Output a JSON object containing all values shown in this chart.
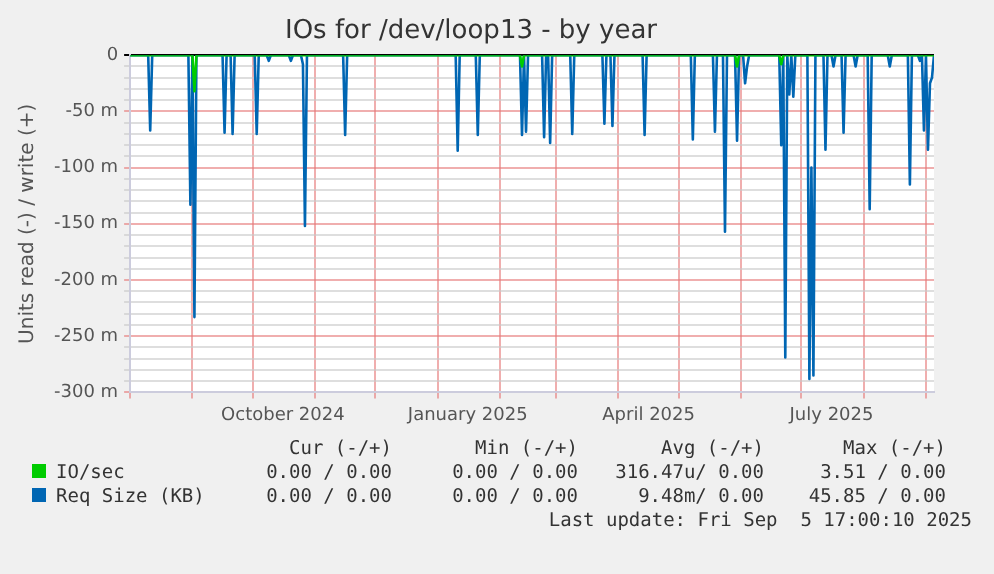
{
  "chart_data": {
    "type": "line",
    "title": "IOs for /dev/loop13 - by year",
    "ylabel": "Units read (-) / write (+)",
    "xlim": [
      "2024-08-01",
      "2025-09-05"
    ],
    "xticks": [
      {
        "value": "2024-08-01",
        "label": null
      },
      {
        "value": "2024-09-01",
        "label": null
      },
      {
        "value": "2024-10-01",
        "label": null
      },
      {
        "value": "2024-10-16",
        "label": "October 2024"
      },
      {
        "value": "2024-11-01",
        "label": null
      },
      {
        "value": "2024-12-01",
        "label": null
      },
      {
        "value": "2025-01-01",
        "label": null
      },
      {
        "value": "2025-01-16",
        "label": "January 2025"
      },
      {
        "value": "2025-02-01",
        "label": null
      },
      {
        "value": "2025-03-01",
        "label": null
      },
      {
        "value": "2025-04-01",
        "label": null
      },
      {
        "value": "2025-04-16",
        "label": "April 2025"
      },
      {
        "value": "2025-05-01",
        "label": null
      },
      {
        "value": "2025-06-01",
        "label": null
      },
      {
        "value": "2025-07-01",
        "label": null
      },
      {
        "value": "2025-07-16",
        "label": "July 2025"
      },
      {
        "value": "2025-08-01",
        "label": null
      },
      {
        "value": "2025-09-01",
        "label": null
      }
    ],
    "ylim": [
      -300,
      0
    ],
    "yticks": [
      {
        "value": -300,
        "label": "-300 m"
      },
      {
        "value": -290,
        "label": null
      },
      {
        "value": -280,
        "label": null
      },
      {
        "value": -270,
        "label": null
      },
      {
        "value": -260,
        "label": null
      },
      {
        "value": -250,
        "label": "-250 m"
      },
      {
        "value": -240,
        "label": null
      },
      {
        "value": -230,
        "label": null
      },
      {
        "value": -220,
        "label": null
      },
      {
        "value": -210,
        "label": null
      },
      {
        "value": -200,
        "label": "-200 m"
      },
      {
        "value": -190,
        "label": null
      },
      {
        "value": -180,
        "label": null
      },
      {
        "value": -170,
        "label": null
      },
      {
        "value": -160,
        "label": null
      },
      {
        "value": -150,
        "label": "-150 m"
      },
      {
        "value": -140,
        "label": null
      },
      {
        "value": -130,
        "label": null
      },
      {
        "value": -120,
        "label": null
      },
      {
        "value": -110,
        "label": null
      },
      {
        "value": -100,
        "label": "-100 m"
      },
      {
        "value": -90,
        "label": null
      },
      {
        "value": -80,
        "label": null
      },
      {
        "value": -70,
        "label": null
      },
      {
        "value": -60,
        "label": null
      },
      {
        "value": -50,
        "label": "-50 m"
      },
      {
        "value": -40,
        "label": null
      },
      {
        "value": -30,
        "label": null
      },
      {
        "value": -20,
        "label": null
      },
      {
        "value": -10,
        "label": null
      },
      0
    ],
    "grid": true,
    "legend": "bottom left",
    "line_style": "solid",
    "marker": "none",
    "series": [
      {
        "name": "IO/sec",
        "color": "#00cc00",
        "x": [
          "2024-08-01",
          "2024-09-01",
          "2024-09-02",
          "2024-09-03",
          "2025-02-11",
          "2025-02-12",
          "2025-02-13",
          "2025-05-29",
          "2025-05-30",
          "2025-05-31",
          "2025-06-20",
          "2025-06-21",
          "2025-06-22",
          "2025-09-05"
        ],
        "values": [
          0,
          0,
          -32,
          0,
          0,
          -10,
          0,
          0,
          -10,
          0,
          0,
          -8,
          0,
          0
        ]
      },
      {
        "name": "Req Size (KB)",
        "color": "#0066b3",
        "x": [
          "2024-08-01",
          "2024-08-10",
          "2024-08-11",
          "2024-08-12",
          "2024-08-30",
          "2024-08-31",
          "2024-09-01",
          "2024-09-02",
          "2024-09-03",
          "2024-09-16",
          "2024-09-17",
          "2024-09-18",
          "2024-09-20",
          "2024-09-21",
          "2024-09-22",
          "2024-10-02",
          "2024-10-03",
          "2024-10-04",
          "2024-10-08",
          "2024-10-09",
          "2024-10-10",
          "2024-10-19",
          "2024-10-20",
          "2024-10-21",
          "2024-10-25",
          "2024-10-26",
          "2024-10-27",
          "2024-10-28",
          "2024-11-15",
          "2024-11-16",
          "2024-11-17",
          "2025-01-10",
          "2025-01-11",
          "2025-01-12",
          "2025-01-20",
          "2025-01-21",
          "2025-01-22",
          "2025-02-11",
          "2025-02-12",
          "2025-02-13",
          "2025-02-14",
          "2025-02-15",
          "2025-02-22",
          "2025-02-23",
          "2025-02-24",
          "2025-02-25",
          "2025-02-26",
          "2025-02-27",
          "2025-03-08",
          "2025-03-09",
          "2025-03-10",
          "2025-03-24",
          "2025-03-25",
          "2025-03-26",
          "2025-03-28",
          "2025-03-29",
          "2025-03-30",
          "2025-04-13",
          "2025-04-14",
          "2025-04-15",
          "2025-05-07",
          "2025-05-08",
          "2025-05-09",
          "2025-05-18",
          "2025-05-19",
          "2025-05-20",
          "2025-05-23",
          "2025-05-24",
          "2025-05-25",
          "2025-05-29",
          "2025-05-30",
          "2025-05-31",
          "2025-06-02",
          "2025-06-03",
          "2025-06-04",
          "2025-06-05",
          "2025-06-20",
          "2025-06-21",
          "2025-06-22",
          "2025-06-23",
          "2025-06-24",
          "2025-06-25",
          "2025-06-26",
          "2025-06-27",
          "2025-06-28",
          "2025-07-04",
          "2025-07-05",
          "2025-07-06",
          "2025-07-07",
          "2025-07-08",
          "2025-07-12",
          "2025-07-13",
          "2025-07-14",
          "2025-07-16",
          "2025-07-17",
          "2025-07-18",
          "2025-07-21",
          "2025-07-22",
          "2025-07-23",
          "2025-07-27",
          "2025-07-28",
          "2025-07-29",
          "2025-08-03",
          "2025-08-04",
          "2025-08-05",
          "2025-08-13",
          "2025-08-14",
          "2025-08-15",
          "2025-08-23",
          "2025-08-24",
          "2025-08-25",
          "2025-08-28",
          "2025-08-29",
          "2025-08-30",
          "2025-08-31",
          "2025-09-01",
          "2025-09-02",
          "2025-09-03",
          "2025-09-04",
          "2025-09-05"
        ],
        "values": [
          0,
          0,
          -67,
          0,
          0,
          -133,
          0,
          -233,
          0,
          0,
          -69,
          0,
          0,
          -70,
          0,
          0,
          -70,
          0,
          0,
          -5,
          0,
          0,
          -5,
          0,
          0,
          -8,
          -152,
          0,
          0,
          -71,
          0,
          0,
          -85,
          0,
          0,
          -71,
          0,
          0,
          -71,
          0,
          -68,
          0,
          0,
          -73,
          0,
          0,
          -78,
          0,
          0,
          -70,
          0,
          0,
          -61,
          0,
          0,
          -63,
          0,
          0,
          -71,
          0,
          0,
          -75,
          0,
          0,
          -68,
          0,
          0,
          -157,
          0,
          0,
          -76,
          0,
          0,
          -25,
          -10,
          0,
          0,
          -80,
          0,
          -269,
          0,
          -35,
          0,
          -37,
          0,
          0,
          -288,
          -100,
          -285,
          0,
          0,
          -84,
          0,
          0,
          -10,
          0,
          0,
          -69,
          0,
          0,
          -10,
          0,
          0,
          -137,
          0,
          0,
          -10,
          0,
          0,
          -115,
          0,
          0,
          -5,
          0,
          -67,
          0,
          -84,
          -25,
          -20,
          0
        ]
      }
    ],
    "annotations": [
      "Cur (-/+)",
      "Min (-/+)",
      "Avg (-/+)",
      "Max (-/+)",
      "0.00 / 0.00",
      "0.00 / 0.00",
      "316.47u/ 0.00",
      "3.51 / 0.00",
      "0.00 / 0.00",
      "0.00 / 0.00",
      "9.48m/ 0.00",
      "45.85 / 0.00",
      "Last update: Fri Sep  5 17:00:10 2025"
    ]
  }
}
